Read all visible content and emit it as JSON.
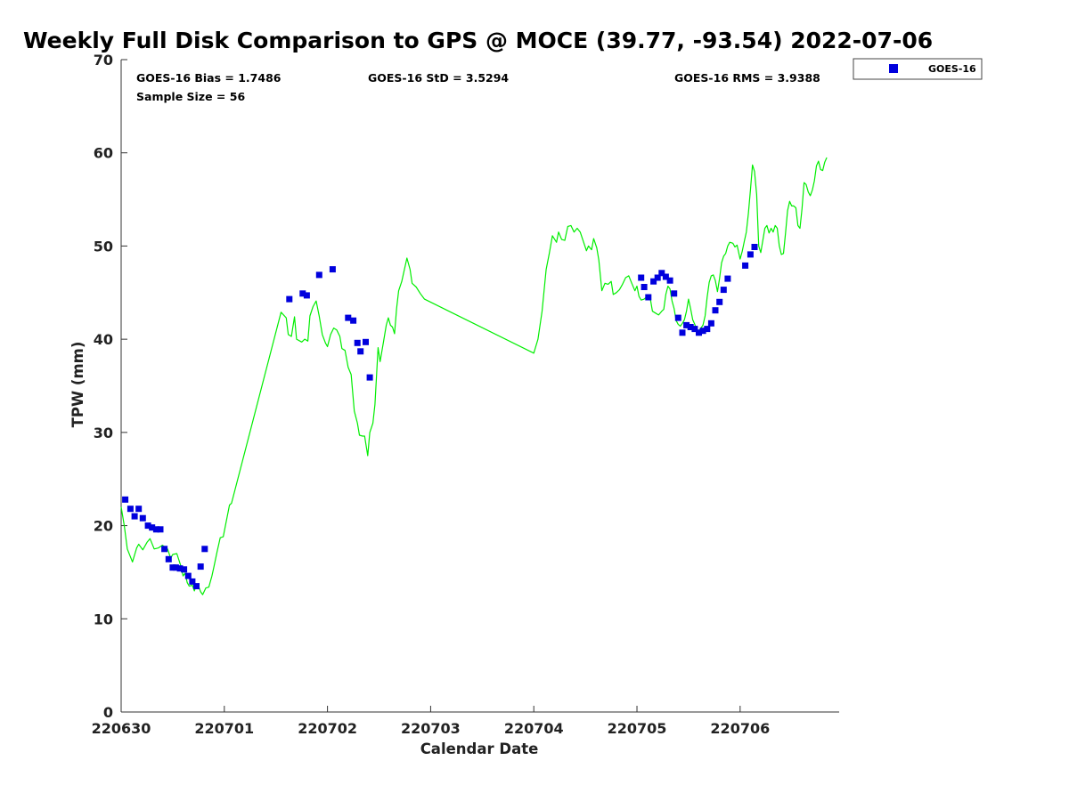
{
  "chart_data": {
    "type": "line",
    "title": "Weekly Full Disk Comparison to GPS @ MOCE (39.77, -93.54) 2022-07-06",
    "xlabel": "Calendar Date",
    "ylabel": "TPW (mm)",
    "xlim": [
      0,
      6.96
    ],
    "ylim": [
      0,
      70
    ],
    "xticks": [
      {
        "value": 0,
        "label": "220630"
      },
      {
        "value": 1,
        "label": "220701"
      },
      {
        "value": 2,
        "label": "220702"
      },
      {
        "value": 3,
        "label": "220703"
      },
      {
        "value": 4,
        "label": "220704"
      },
      {
        "value": 5,
        "label": "220705"
      },
      {
        "value": 6,
        "label": "220706"
      }
    ],
    "yticks": [
      0,
      10,
      20,
      30,
      40,
      50,
      60,
      70
    ],
    "grid": false,
    "stats": {
      "bias": "GOES-16 Bias = 1.7486",
      "std": "GOES-16 StD = 3.5294",
      "rms": "GOES-16 RMS = 3.9388",
      "sample": "Sample Size = 56"
    },
    "legend": {
      "position": "top-right",
      "label": "GOES-16"
    },
    "colors": {
      "gps": "#00ee00",
      "goes": "#0000dd"
    },
    "series": [
      {
        "name": "GPS",
        "kind": "line",
        "points": [
          [
            0.0,
            22.0
          ],
          [
            0.03,
            20.0
          ],
          [
            0.06,
            17.5
          ],
          [
            0.11,
            16.1
          ],
          [
            0.15,
            17.6
          ],
          [
            0.17,
            18.0
          ],
          [
            0.21,
            17.4
          ],
          [
            0.25,
            18.2
          ],
          [
            0.28,
            18.6
          ],
          [
            0.32,
            17.5
          ],
          [
            0.36,
            17.6
          ],
          [
            0.4,
            17.9
          ],
          [
            0.45,
            17.5
          ],
          [
            0.48,
            16.5
          ],
          [
            0.5,
            16.9
          ],
          [
            0.54,
            17.0
          ],
          [
            0.58,
            15.6
          ],
          [
            0.6,
            14.6
          ],
          [
            0.62,
            14.9
          ],
          [
            0.64,
            13.9
          ],
          [
            0.66,
            13.5
          ],
          [
            0.69,
            13.6
          ],
          [
            0.71,
            13.0
          ],
          [
            0.73,
            13.7
          ],
          [
            0.75,
            13.5
          ],
          [
            0.77,
            12.9
          ],
          [
            0.79,
            12.6
          ],
          [
            0.82,
            13.3
          ],
          [
            0.85,
            13.4
          ],
          [
            0.88,
            14.6
          ],
          [
            0.9,
            15.6
          ],
          [
            0.93,
            17.2
          ],
          [
            0.96,
            18.7
          ],
          [
            0.99,
            18.8
          ],
          [
            1.02,
            20.5
          ],
          [
            1.05,
            22.2
          ],
          [
            1.07,
            22.4
          ],
          [
            1.55,
            42.9
          ],
          [
            1.6,
            42.3
          ],
          [
            1.62,
            40.5
          ],
          [
            1.65,
            40.3
          ],
          [
            1.68,
            42.4
          ],
          [
            1.7,
            40.0
          ],
          [
            1.75,
            39.7
          ],
          [
            1.78,
            40.0
          ],
          [
            1.81,
            39.8
          ],
          [
            1.83,
            42.5
          ],
          [
            1.86,
            43.5
          ],
          [
            1.89,
            44.1
          ],
          [
            1.92,
            42.5
          ],
          [
            1.95,
            40.5
          ],
          [
            1.98,
            39.6
          ],
          [
            2.0,
            39.2
          ],
          [
            2.03,
            40.5
          ],
          [
            2.06,
            41.2
          ],
          [
            2.09,
            41.0
          ],
          [
            2.12,
            40.3
          ],
          [
            2.14,
            39.0
          ],
          [
            2.17,
            38.8
          ],
          [
            2.2,
            37.0
          ],
          [
            2.23,
            36.2
          ],
          [
            2.26,
            32.3
          ],
          [
            2.29,
            31.0
          ],
          [
            2.31,
            29.7
          ],
          [
            2.34,
            29.6
          ],
          [
            2.36,
            29.6
          ],
          [
            2.39,
            27.5
          ],
          [
            2.41,
            30.0
          ],
          [
            2.44,
            31.0
          ],
          [
            2.46,
            33.0
          ],
          [
            2.49,
            39.1
          ],
          [
            2.51,
            37.6
          ],
          [
            2.54,
            39.5
          ],
          [
            2.57,
            41.5
          ],
          [
            2.59,
            42.3
          ],
          [
            2.61,
            41.5
          ],
          [
            2.63,
            41.3
          ],
          [
            2.65,
            40.6
          ],
          [
            2.67,
            43.3
          ],
          [
            2.69,
            45.2
          ],
          [
            2.72,
            46.2
          ],
          [
            2.74,
            47.2
          ],
          [
            2.77,
            48.7
          ],
          [
            2.8,
            47.5
          ],
          [
            2.82,
            46.0
          ],
          [
            2.86,
            45.6
          ],
          [
            2.9,
            44.9
          ],
          [
            2.94,
            44.3
          ],
          [
            4.0,
            38.5
          ],
          [
            4.04,
            40.0
          ],
          [
            4.08,
            43.0
          ],
          [
            4.12,
            47.5
          ],
          [
            4.15,
            49.2
          ],
          [
            4.18,
            51.1
          ],
          [
            4.22,
            50.4
          ],
          [
            4.24,
            51.5
          ],
          [
            4.27,
            50.7
          ],
          [
            4.3,
            50.6
          ],
          [
            4.33,
            52.1
          ],
          [
            4.36,
            52.2
          ],
          [
            4.39,
            51.5
          ],
          [
            4.42,
            51.9
          ],
          [
            4.45,
            51.5
          ],
          [
            4.48,
            50.5
          ],
          [
            4.51,
            49.5
          ],
          [
            4.53,
            50.0
          ],
          [
            4.56,
            49.6
          ],
          [
            4.58,
            50.8
          ],
          [
            4.61,
            49.8
          ],
          [
            4.63,
            48.5
          ],
          [
            4.66,
            45.2
          ],
          [
            4.69,
            46.0
          ],
          [
            4.72,
            45.9
          ],
          [
            4.75,
            46.2
          ],
          [
            4.77,
            44.8
          ],
          [
            4.8,
            45.0
          ],
          [
            4.83,
            45.3
          ],
          [
            4.86,
            45.9
          ],
          [
            4.89,
            46.6
          ],
          [
            4.92,
            46.8
          ],
          [
            4.95,
            46.0
          ],
          [
            4.98,
            45.2
          ],
          [
            5.0,
            45.7
          ],
          [
            5.02,
            44.6
          ],
          [
            5.04,
            44.2
          ],
          [
            5.07,
            44.3
          ],
          [
            5.1,
            44.6
          ],
          [
            5.13,
            44.3
          ],
          [
            5.15,
            43.0
          ],
          [
            5.18,
            42.8
          ],
          [
            5.21,
            42.6
          ],
          [
            5.24,
            43.0
          ],
          [
            5.26,
            43.2
          ],
          [
            5.28,
            44.8
          ],
          [
            5.3,
            45.7
          ],
          [
            5.32,
            45.4
          ],
          [
            5.34,
            44.1
          ],
          [
            5.36,
            43.3
          ],
          [
            5.38,
            42.0
          ],
          [
            5.4,
            41.6
          ],
          [
            5.42,
            41.4
          ],
          [
            5.44,
            41.7
          ],
          [
            5.46,
            42.1
          ],
          [
            5.48,
            43.0
          ],
          [
            5.5,
            44.3
          ],
          [
            5.52,
            43.3
          ],
          [
            5.54,
            42.1
          ],
          [
            5.56,
            41.6
          ],
          [
            5.58,
            41.0
          ],
          [
            5.6,
            40.9
          ],
          [
            5.62,
            41.2
          ],
          [
            5.64,
            41.5
          ],
          [
            5.66,
            42.5
          ],
          [
            5.68,
            44.5
          ],
          [
            5.7,
            46.1
          ],
          [
            5.72,
            46.8
          ],
          [
            5.74,
            46.9
          ],
          [
            5.76,
            46.3
          ],
          [
            5.78,
            45.1
          ],
          [
            5.8,
            46.5
          ],
          [
            5.82,
            48.2
          ],
          [
            5.84,
            48.9
          ],
          [
            5.86,
            49.2
          ],
          [
            5.88,
            50.0
          ],
          [
            5.9,
            50.4
          ],
          [
            5.93,
            50.3
          ],
          [
            5.95,
            49.9
          ],
          [
            5.97,
            50.1
          ],
          [
            6.0,
            48.6
          ],
          [
            6.02,
            49.4
          ],
          [
            6.04,
            50.5
          ],
          [
            6.06,
            51.5
          ],
          [
            6.08,
            53.5
          ],
          [
            6.1,
            56.0
          ],
          [
            6.12,
            58.7
          ],
          [
            6.14,
            58.0
          ],
          [
            6.16,
            55.5
          ],
          [
            6.18,
            50.0
          ],
          [
            6.2,
            49.3
          ],
          [
            6.22,
            50.6
          ],
          [
            6.24,
            51.9
          ],
          [
            6.26,
            52.2
          ],
          [
            6.28,
            51.4
          ],
          [
            6.3,
            51.9
          ],
          [
            6.32,
            51.5
          ],
          [
            6.34,
            52.2
          ],
          [
            6.36,
            51.9
          ],
          [
            6.38,
            50.0
          ],
          [
            6.4,
            49.1
          ],
          [
            6.42,
            49.2
          ],
          [
            6.44,
            51.4
          ],
          [
            6.46,
            53.8
          ],
          [
            6.48,
            54.8
          ],
          [
            6.5,
            54.3
          ],
          [
            6.52,
            54.3
          ],
          [
            6.54,
            54.1
          ],
          [
            6.56,
            52.2
          ],
          [
            6.58,
            51.9
          ],
          [
            6.6,
            54.0
          ],
          [
            6.62,
            56.8
          ],
          [
            6.64,
            56.6
          ],
          [
            6.66,
            55.8
          ],
          [
            6.68,
            55.4
          ],
          [
            6.7,
            56.0
          ],
          [
            6.72,
            57.0
          ],
          [
            6.74,
            58.6
          ],
          [
            6.76,
            59.1
          ],
          [
            6.78,
            58.2
          ],
          [
            6.8,
            58.1
          ],
          [
            6.82,
            59.0
          ],
          [
            6.84,
            59.5
          ]
        ]
      },
      {
        "name": "GOES-16",
        "kind": "scatter",
        "points": [
          [
            0.04,
            22.8
          ],
          [
            0.09,
            21.8
          ],
          [
            0.13,
            21.0
          ],
          [
            0.17,
            21.8
          ],
          [
            0.21,
            20.8
          ],
          [
            0.26,
            20.0
          ],
          [
            0.3,
            19.8
          ],
          [
            0.34,
            19.6
          ],
          [
            0.38,
            19.6
          ],
          [
            0.42,
            17.5
          ],
          [
            0.46,
            16.4
          ],
          [
            0.5,
            15.5
          ],
          [
            0.53,
            15.5
          ],
          [
            0.57,
            15.4
          ],
          [
            0.61,
            15.3
          ],
          [
            0.65,
            14.6
          ],
          [
            0.69,
            14.0
          ],
          [
            0.73,
            13.5
          ],
          [
            0.77,
            15.6
          ],
          [
            0.81,
            17.5
          ],
          [
            1.63,
            44.3
          ],
          [
            1.76,
            44.9
          ],
          [
            1.8,
            44.7
          ],
          [
            1.92,
            46.9
          ],
          [
            2.05,
            47.5
          ],
          [
            2.2,
            42.3
          ],
          [
            2.25,
            42.0
          ],
          [
            2.29,
            39.6
          ],
          [
            2.32,
            38.7
          ],
          [
            2.37,
            39.7
          ],
          [
            2.41,
            35.9
          ],
          [
            5.04,
            46.6
          ],
          [
            5.07,
            45.6
          ],
          [
            5.11,
            44.5
          ],
          [
            5.16,
            46.2
          ],
          [
            5.2,
            46.6
          ],
          [
            5.24,
            47.1
          ],
          [
            5.28,
            46.7
          ],
          [
            5.32,
            46.3
          ],
          [
            5.36,
            44.9
          ],
          [
            5.4,
            42.3
          ],
          [
            5.44,
            40.7
          ],
          [
            5.48,
            41.5
          ],
          [
            5.52,
            41.3
          ],
          [
            5.56,
            41.1
          ],
          [
            5.6,
            40.7
          ],
          [
            5.64,
            40.9
          ],
          [
            5.68,
            41.1
          ],
          [
            5.72,
            41.7
          ],
          [
            5.76,
            43.1
          ],
          [
            5.8,
            44.0
          ],
          [
            5.84,
            45.3
          ],
          [
            5.88,
            46.5
          ],
          [
            6.05,
            47.9
          ],
          [
            6.1,
            49.1
          ],
          [
            6.14,
            49.9
          ]
        ]
      }
    ]
  }
}
